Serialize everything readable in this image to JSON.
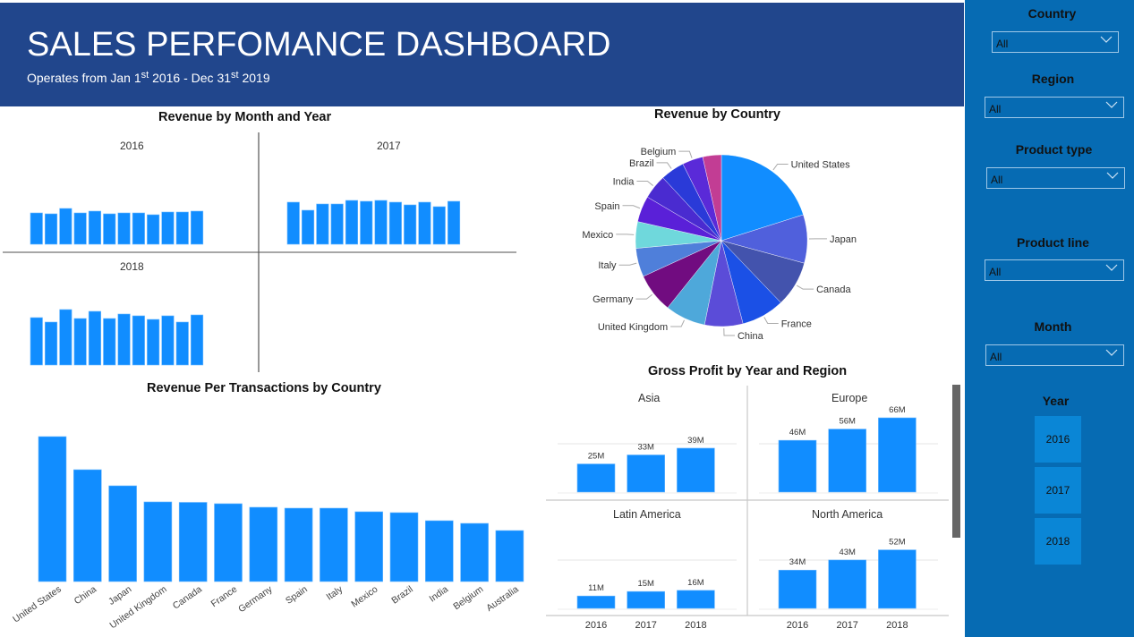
{
  "header": {
    "title": "SALES PERFOMANCE DASHBOARD",
    "subtitle_parts": [
      "Operates from Jan 1",
      "st",
      " 2016 - Dec 31",
      "st",
      " 2019"
    ]
  },
  "colors": {
    "header_bg": "#21468c",
    "sidebar_bg": "#066bb3",
    "bar": "#118dff",
    "year_tile": "#0a86d6"
  },
  "sidebar": {
    "slicers": [
      {
        "label": "Country",
        "value": "All",
        "icon": "chevron-down-icon"
      },
      {
        "label": "Region",
        "value": "All",
        "icon": "chevron-down-icon"
      },
      {
        "label": "Product type",
        "value": "All",
        "icon": "chevron-down-icon"
      },
      {
        "label": "Product line",
        "value": "All",
        "icon": "chevron-down-icon"
      },
      {
        "label": "Month",
        "value": "All",
        "icon": "chevron-down-icon"
      }
    ],
    "year_label": "Year",
    "years": [
      "2016",
      "2017",
      "2018"
    ]
  },
  "chart_data": [
    {
      "type": "bar",
      "title": "Revenue by Month and Year",
      "note": "small multiples, one panel per year, 12 monthly bars each, no axis ticks shown",
      "series": [
        {
          "name": "2016",
          "values": [
            35,
            34,
            40,
            35,
            37,
            34,
            35,
            35,
            33,
            36,
            36,
            37
          ]
        },
        {
          "name": "2017",
          "values": [
            47,
            38,
            45,
            45,
            49,
            48,
            49,
            47,
            44,
            47,
            42,
            48
          ]
        },
        {
          "name": "2018",
          "values": [
            53,
            48,
            62,
            52,
            60,
            52,
            57,
            55,
            51,
            55,
            48,
            56
          ]
        }
      ],
      "ylim": [
        0,
        100
      ]
    },
    {
      "type": "pie",
      "title": "Revenue by Country",
      "slices": [
        {
          "label": "United States",
          "value": 20.1,
          "color": "#118dff"
        },
        {
          "label": "Japan",
          "value": 9.1,
          "color": "#5060dc"
        },
        {
          "label": "Canada",
          "value": 8.6,
          "color": "#4353ad"
        },
        {
          "label": "France",
          "value": 8.1,
          "color": "#1b50e6"
        },
        {
          "label": "China",
          "value": 7.2,
          "color": "#5b4cd8"
        },
        {
          "label": "United Kingdom",
          "value": 7.6,
          "color": "#4ea8da"
        },
        {
          "label": "Germany",
          "value": 7.4,
          "color": "#710c80"
        },
        {
          "label": "Italy",
          "value": 5.4,
          "color": "#4f7fda"
        },
        {
          "label": "Mexico",
          "value": 5.0,
          "color": "#6fd8dc"
        },
        {
          "label": "Spain",
          "value": 4.9,
          "color": "#5a20d8"
        },
        {
          "label": "India",
          "value": 4.6,
          "color": "#4a2bd0"
        },
        {
          "label": "Brazil",
          "value": 4.5,
          "color": "#2a3ad8"
        },
        {
          "label": "Belgium",
          "value": 3.9,
          "color": "#5a2ad8"
        },
        {
          "label": "",
          "value": 3.5,
          "color": "#c23d94"
        }
      ]
    },
    {
      "type": "bar",
      "title": "Revenue Per Transactions by Country",
      "categories": [
        "United States",
        "China",
        "Japan",
        "United Kingdom",
        "Canada",
        "France",
        "Germany",
        "Spain",
        "Italy",
        "Mexico",
        "Brazil",
        "India",
        "Belgium",
        "Australia"
      ],
      "values": [
        162,
        125,
        107,
        89,
        88.5,
        87,
        83,
        82,
        82,
        78,
        77,
        68,
        65,
        57
      ],
      "ylim": [
        0,
        170
      ]
    },
    {
      "type": "bar",
      "title": "Gross Profit by Year and Region",
      "categories": [
        "2016",
        "2017",
        "2018"
      ],
      "panels": [
        {
          "name": "Asia",
          "values": [
            25,
            33,
            39
          ],
          "labels": [
            "25M",
            "33M",
            "39M"
          ]
        },
        {
          "name": "Europe",
          "values": [
            46,
            56,
            66
          ],
          "labels": [
            "46M",
            "56M",
            "66M"
          ]
        },
        {
          "name": "Latin America",
          "values": [
            11,
            15,
            16
          ],
          "labels": [
            "11M",
            "15M",
            "16M"
          ]
        },
        {
          "name": "North America",
          "values": [
            34,
            43,
            52
          ],
          "labels": [
            "34M",
            "43M",
            "52M"
          ]
        }
      ],
      "unit": "M",
      "ylim": [
        0,
        70
      ]
    }
  ]
}
